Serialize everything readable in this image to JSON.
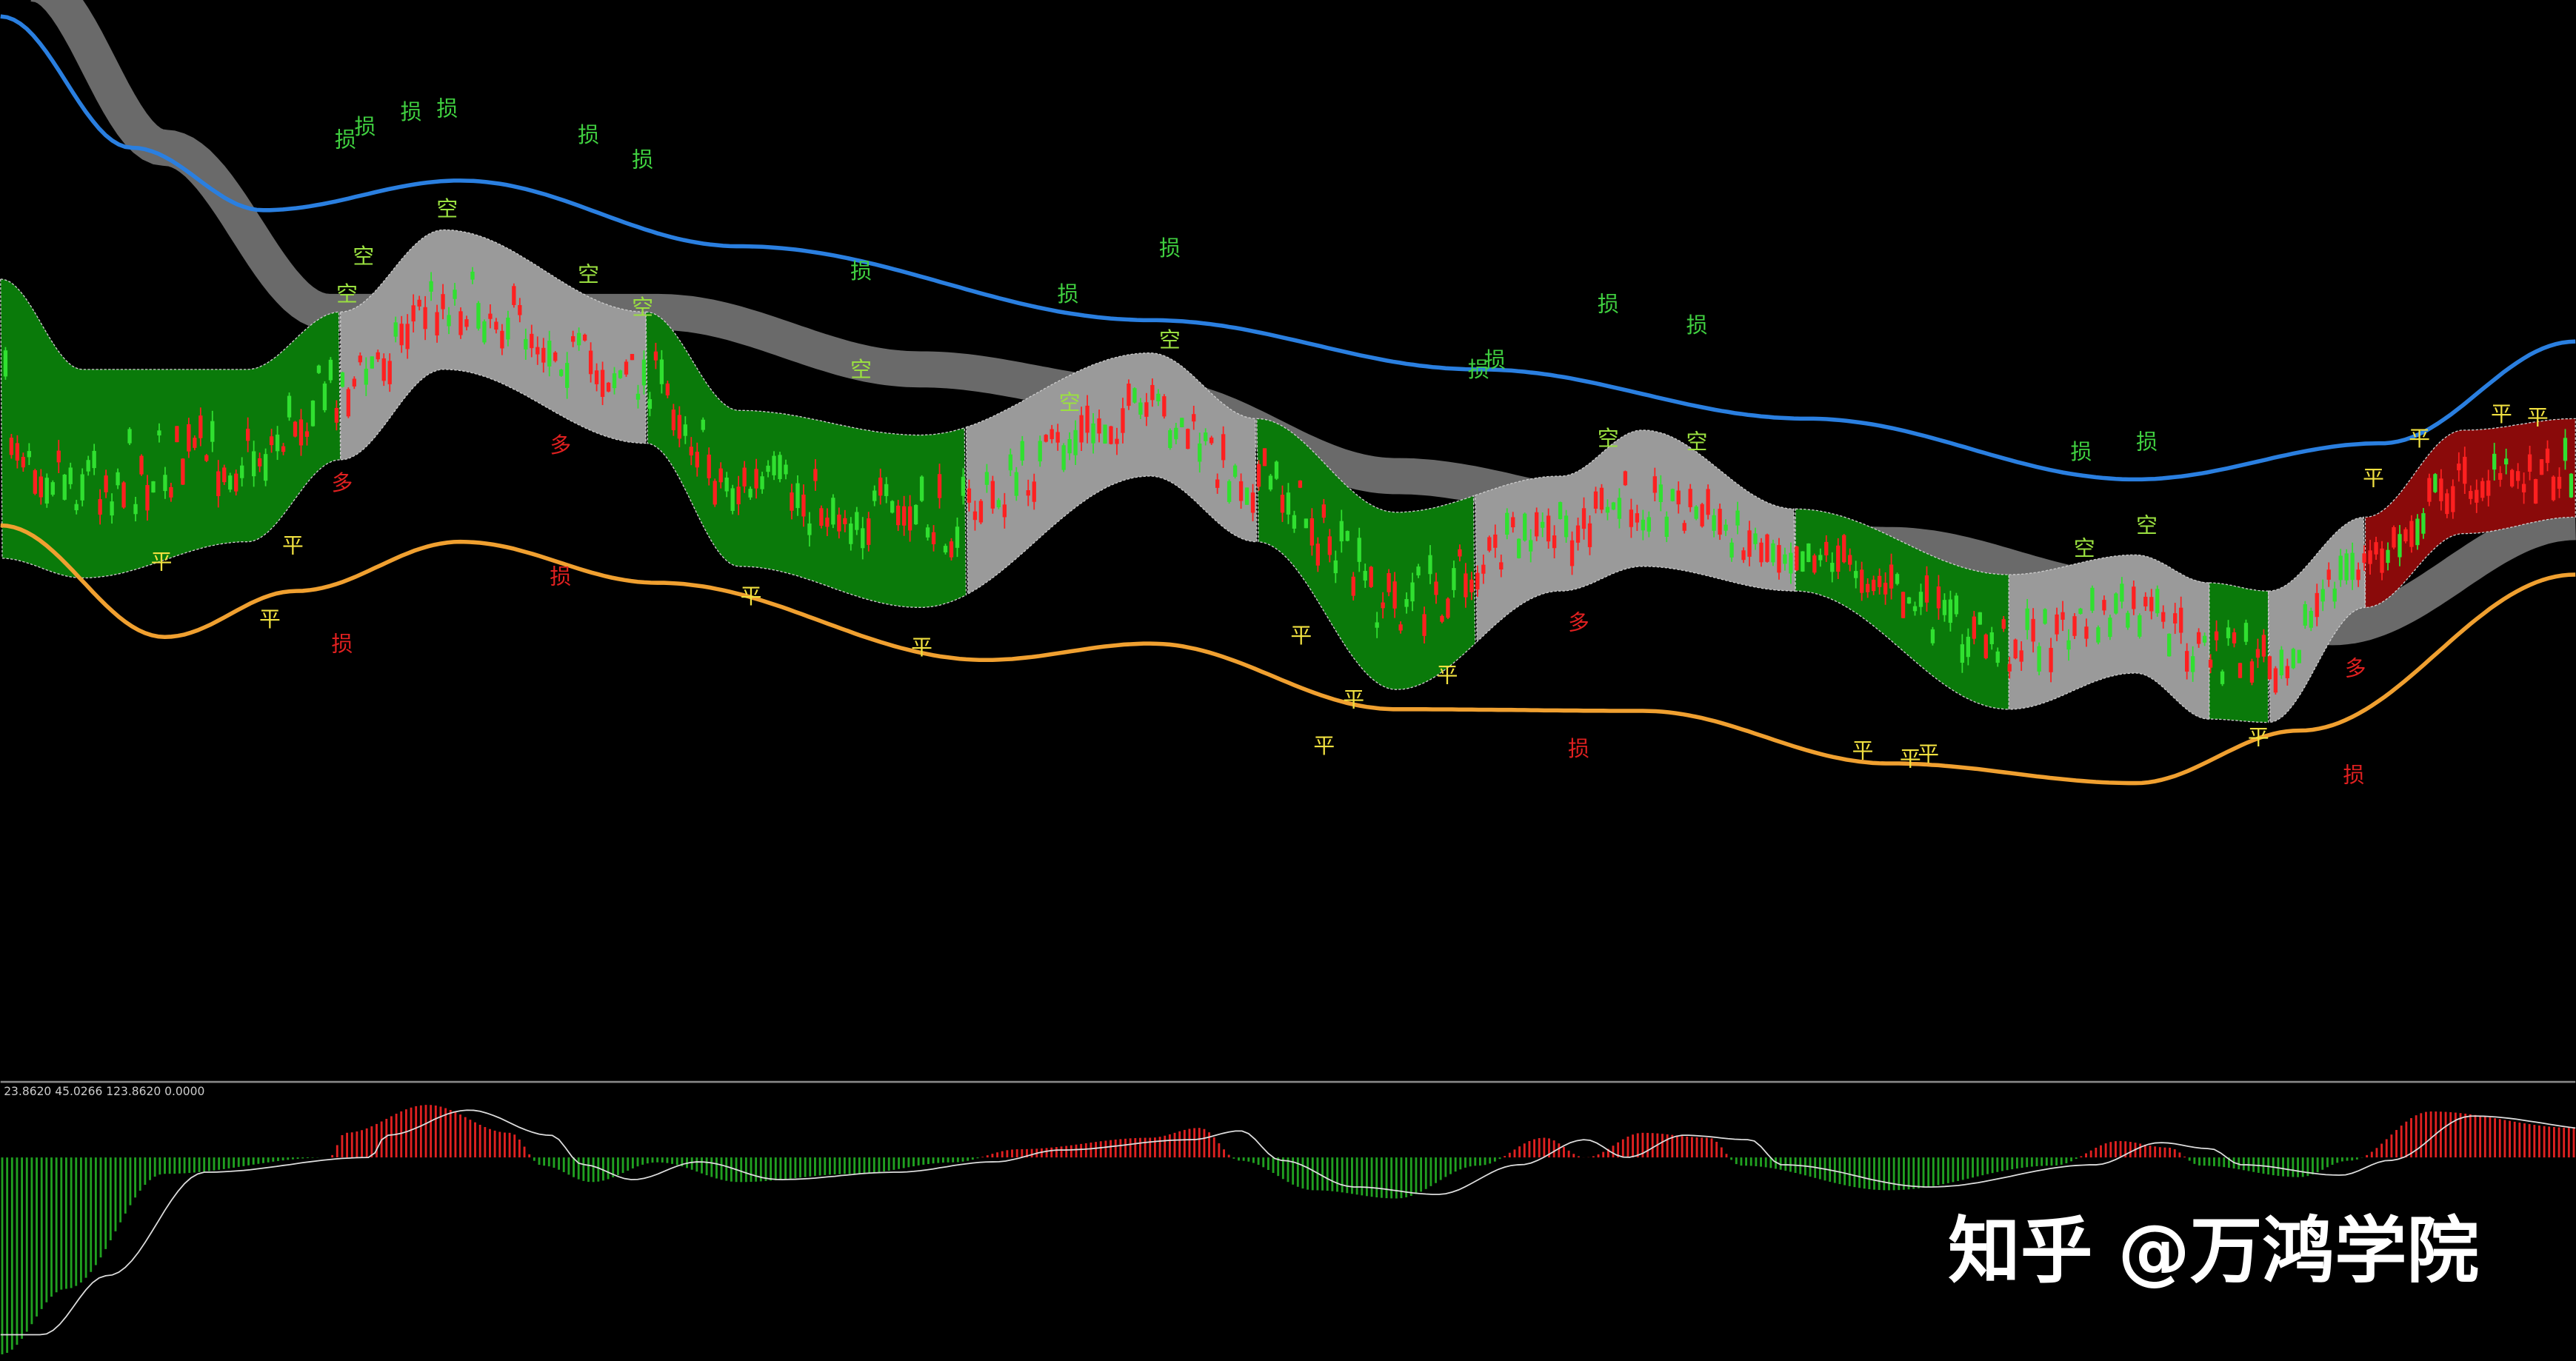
{
  "indicator_header": "23.8620 45.0266 123.8620 0.0000",
  "watermark": "知乎 @万鸿学院",
  "signals": [
    "损",
    "损",
    "损",
    "损",
    "损",
    "损",
    "损",
    "损",
    "损",
    "损",
    "损",
    "损",
    "损",
    "损",
    "损",
    "损",
    "损",
    "损",
    "损",
    "空",
    "空",
    "空",
    "空",
    "空",
    "空",
    "空",
    "空",
    "空",
    "空",
    "空",
    "空",
    "平",
    "平",
    "平",
    "平",
    "平",
    "平",
    "平",
    "平",
    "平",
    "平",
    "平",
    "平",
    "平",
    "平",
    "平",
    "平",
    "平",
    "多",
    "多",
    "多",
    "多"
  ]
}
